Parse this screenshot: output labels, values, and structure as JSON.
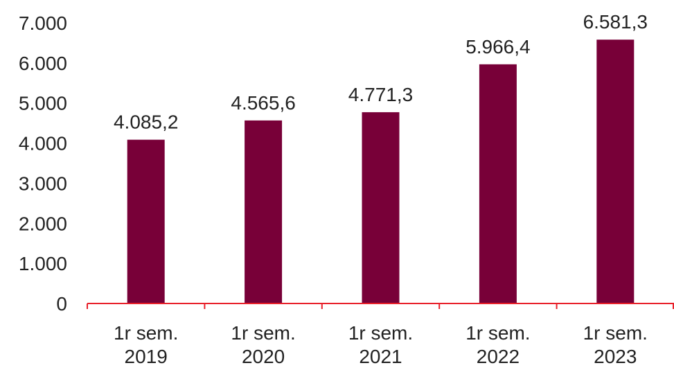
{
  "chart_data": {
    "type": "bar",
    "title": "",
    "xlabel": "",
    "ylabel": "",
    "categories": [
      {
        "line1": "1r sem.",
        "line2": "2019"
      },
      {
        "line1": "1r sem.",
        "line2": "2020"
      },
      {
        "line1": "1r sem.",
        "line2": "2021"
      },
      {
        "line1": "1r sem.",
        "line2": "2022"
      },
      {
        "line1": "1r sem.",
        "line2": "2023"
      }
    ],
    "values": [
      4085.2,
      4565.6,
      4771.3,
      5966.4,
      6581.3
    ],
    "value_labels": [
      "4.085,2",
      "4.565,6",
      "4.771,3",
      "5.966,4",
      "6.581,3"
    ],
    "ylim": [
      0,
      7000
    ],
    "yticks": [
      {
        "value": 0,
        "label": "0"
      },
      {
        "value": 1000,
        "label": "1.000"
      },
      {
        "value": 2000,
        "label": "2.000"
      },
      {
        "value": 3000,
        "label": "3.000"
      },
      {
        "value": 4000,
        "label": "4.000"
      },
      {
        "value": 5000,
        "label": "5.000"
      },
      {
        "value": 6000,
        "label": "6.000"
      },
      {
        "value": 7000,
        "label": "7.000"
      }
    ],
    "grid": false,
    "legend": "none",
    "colors": {
      "bar": "#780038",
      "axis": "#e8202a",
      "text": "#222222"
    }
  }
}
